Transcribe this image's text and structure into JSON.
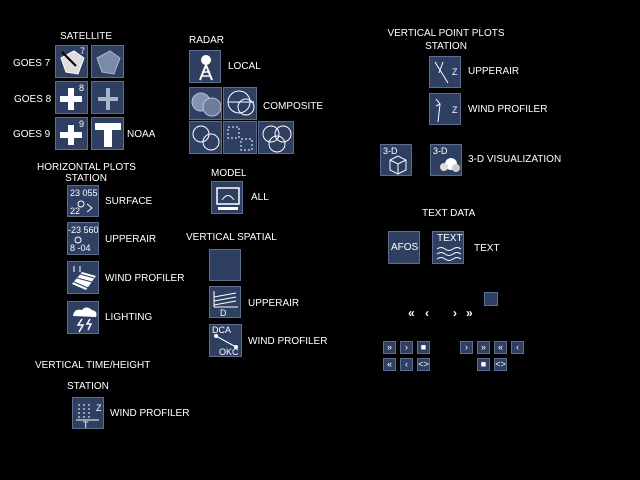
{
  "satellite": {
    "title": "SATELLITE",
    "goes7": "GOES 7",
    "goes8": "GOES 8",
    "goes9": "GOES 9",
    "noaa": "NOAA",
    "goes7_sup": "7",
    "goes8_sup": "8",
    "goes9_sup": "9"
  },
  "radar": {
    "title": "RADAR",
    "local": "LOCAL",
    "composite": "COMPOSITE"
  },
  "model": {
    "title": "MODEL",
    "all": "ALL"
  },
  "vertical_spatial": {
    "title": "VERTICAL SPATIAL",
    "upperair": "UPPERAIR",
    "wind_profiler": "WIND PROFILER",
    "upperair_d": "D",
    "wp_top": "DCA",
    "wp_bottom": "OKC"
  },
  "horizontal": {
    "title_line1": "HORIZONTAL PLOTS",
    "title_line2": "STATION",
    "surface": "SURFACE",
    "upperair": "UPPERAIR",
    "wind_profiler": "WIND PROFILER",
    "lighting": "LIGHTING",
    "surface_icon_top": "23 055",
    "surface_icon_bottom": "22",
    "upperair_icon_top": "-23 560",
    "upperair_icon_bottom": "8 -04"
  },
  "vertical_point": {
    "title_line1": "VERTICAL POINT PLOTS",
    "title_line2": "STATION",
    "upperair": "UPPERAIR",
    "wind_profiler": "WIND PROFILER",
    "three_d_viz": "3-D VISUALIZATION",
    "three_d_a": "3-D",
    "three_d_b": "3-D",
    "z_label": "Z"
  },
  "text_data": {
    "title": "TEXT DATA",
    "text": "TEXT",
    "afos_icon": "AFOS",
    "text_icon": "TEXT"
  },
  "vertical_time": {
    "title": "VERTICAL TIME/HEIGHT",
    "station": "STATION",
    "wind_profiler": "WIND PROFILER",
    "z": "Z",
    "t": "T"
  },
  "nav": {
    "row_top": [
      "«",
      "‹",
      "›",
      "»"
    ],
    "grp1_row1": [
      "»",
      "›",
      "■"
    ],
    "grp1_row2": [
      "«",
      "‹",
      "<>"
    ],
    "grp2_row1": [
      "›",
      "»",
      "«",
      "‹"
    ],
    "grp2_row2": [
      "■",
      "<>"
    ]
  },
  "colors": {
    "button_fill": "#2e3f62",
    "button_border": "#5b6e92",
    "background": "#000000"
  }
}
